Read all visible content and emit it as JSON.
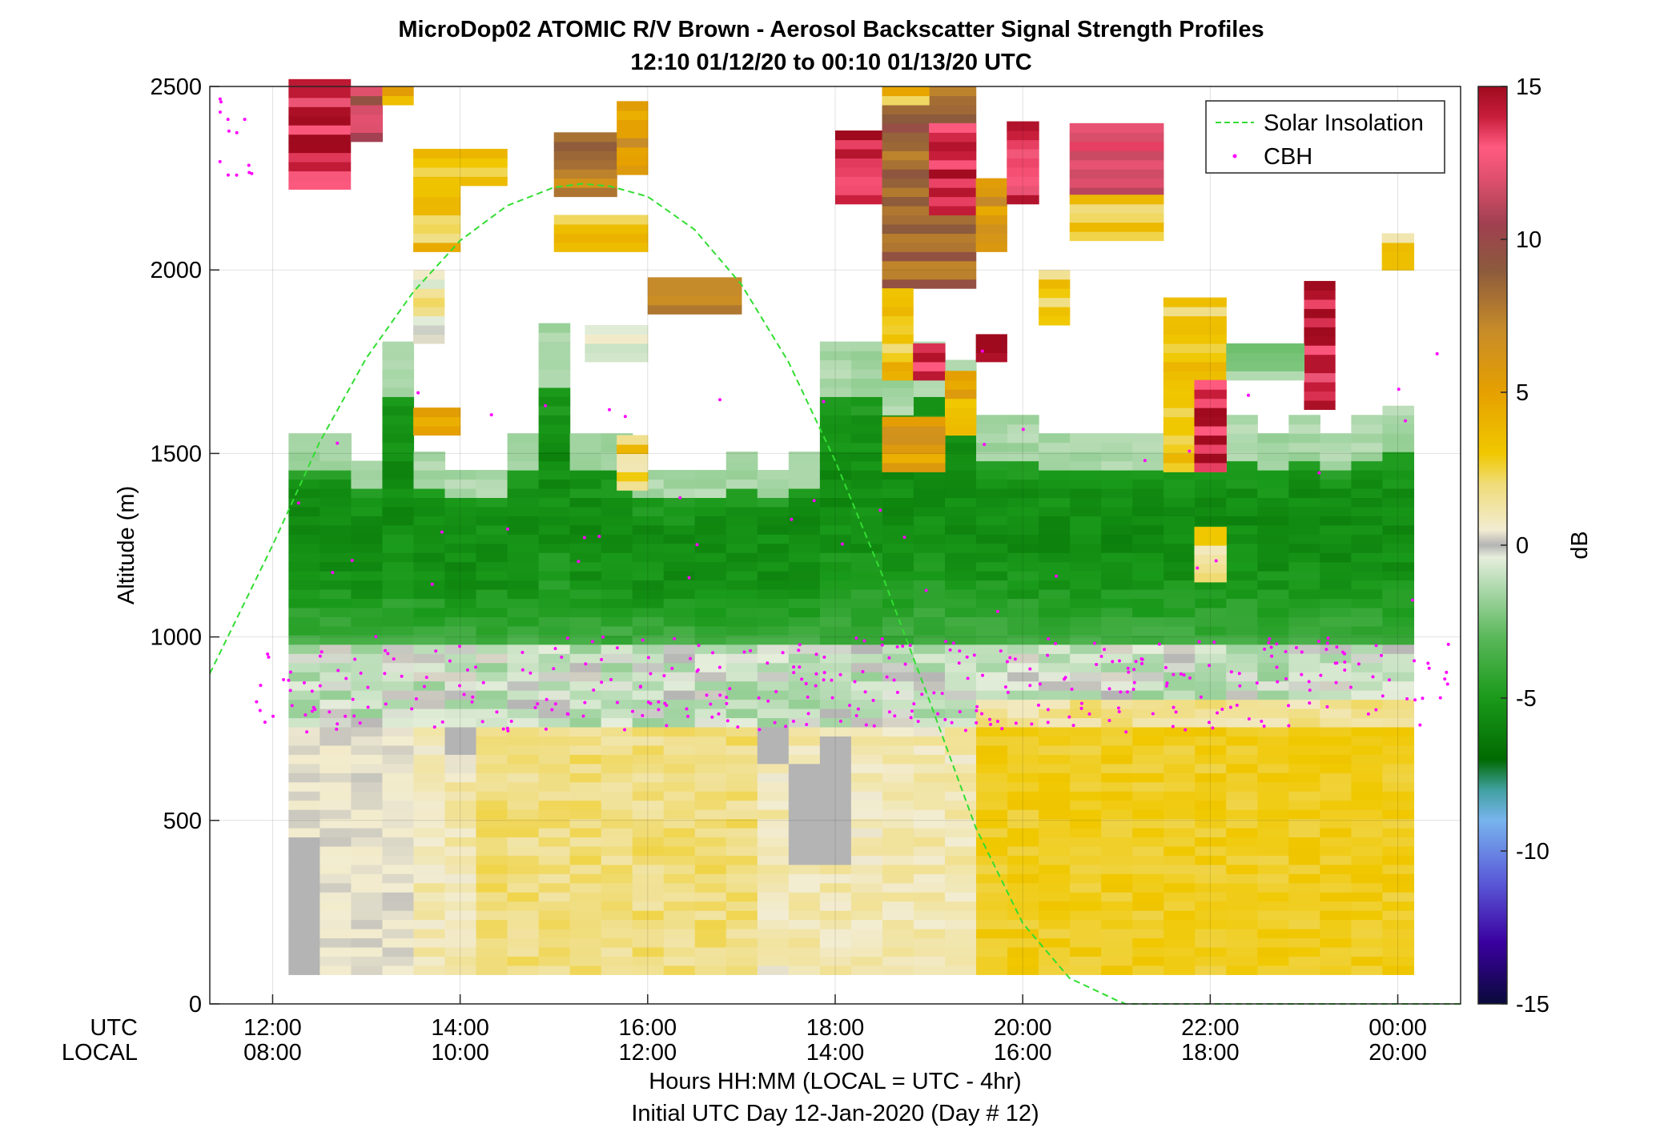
{
  "chart_data": {
    "type": "heatmap",
    "title": "MicroDop02 ATOMIC R/V Brown - Aerosol Backscatter Signal Strength Profiles",
    "subtitle": "12:10 01/12/20 to 00:10 01/13/20  UTC",
    "ylabel": "Altitude (m)",
    "xlabel": "Hours HH:MM  (LOCAL = UTC - 4hr)",
    "footer": "Initial UTC Day 12-Jan-2020 (Day # 12)",
    "xlim_hours_utc": [
      11.33,
      24.67
    ],
    "ylim": [
      0,
      2500
    ],
    "grid": true,
    "x_row_labels": [
      "UTC",
      "LOCAL"
    ],
    "x_ticks": [
      {
        "hour": 12,
        "utc": "12:00",
        "local": "08:00"
      },
      {
        "hour": 14,
        "utc": "14:00",
        "local": "10:00"
      },
      {
        "hour": 16,
        "utc": "16:00",
        "local": "12:00"
      },
      {
        "hour": 18,
        "utc": "18:00",
        "local": "14:00"
      },
      {
        "hour": 20,
        "utc": "20:00",
        "local": "16:00"
      },
      {
        "hour": 22,
        "utc": "22:00",
        "local": "18:00"
      },
      {
        "hour": 24,
        "utc": "00:00",
        "local": "20:00"
      }
    ],
    "y_ticks": [
      0,
      500,
      1000,
      1500,
      2000,
      2500
    ],
    "legend": {
      "placement": "top-right",
      "entries": [
        {
          "label": "Solar Insolation",
          "style": "dashed-line",
          "color": "#33dd33"
        },
        {
          "label": "CBH",
          "style": "dot",
          "color": "#ff00ff"
        }
      ]
    },
    "colorbar": {
      "label": "dB",
      "range": [
        -15,
        15
      ],
      "ticks": [
        15,
        10,
        5,
        0,
        -5,
        -10,
        -15
      ],
      "stops": [
        {
          "v": -15,
          "c": "#0a0a3a"
        },
        {
          "v": -13,
          "c": "#3a00a0"
        },
        {
          "v": -11,
          "c": "#5a5ad8"
        },
        {
          "v": -9,
          "c": "#78b4ee"
        },
        {
          "v": -8,
          "c": "#40a0a0"
        },
        {
          "v": -7,
          "c": "#006a00"
        },
        {
          "v": -5,
          "c": "#1a9a1a"
        },
        {
          "v": -3,
          "c": "#5ab85a"
        },
        {
          "v": -1.5,
          "c": "#a8d6a8"
        },
        {
          "v": -0.4,
          "c": "#e6eedc"
        },
        {
          "v": 0,
          "c": "#b4b4b4"
        },
        {
          "v": 0.5,
          "c": "#f2ecd2"
        },
        {
          "v": 2,
          "c": "#f0dc78"
        },
        {
          "v": 3,
          "c": "#f0c800"
        },
        {
          "v": 5,
          "c": "#e6a000"
        },
        {
          "v": 7,
          "c": "#c88c28"
        },
        {
          "v": 9,
          "c": "#8c5a3c"
        },
        {
          "v": 10.5,
          "c": "#a04050"
        },
        {
          "v": 12,
          "c": "#e0506e"
        },
        {
          "v": 13,
          "c": "#ff5a80"
        },
        {
          "v": 14,
          "c": "#c81e3c"
        },
        {
          "v": 15,
          "c": "#a00a1e"
        }
      ]
    },
    "solar_insolation": {
      "x_hours_utc": [
        11.33,
        12.0,
        12.5,
        13.0,
        13.5,
        14.0,
        14.5,
        15.0,
        15.3,
        15.6,
        16.0,
        16.5,
        17.0,
        17.5,
        18.0,
        18.5,
        19.0,
        19.5,
        20.0,
        20.5,
        21.0,
        21.1,
        24.67
      ],
      "altitude_m": [
        900,
        1250,
        1530,
        1760,
        1940,
        2080,
        2175,
        2225,
        2235,
        2228,
        2200,
        2110,
        1960,
        1750,
        1480,
        1170,
        830,
        480,
        220,
        70,
        10,
        0,
        0
      ]
    },
    "layers": [
      {
        "name": "surface-aerosol",
        "x_range": [
          12.17,
          24.17
        ],
        "y_range": [
          80,
          750
        ],
        "mean_db": 1.5
      },
      {
        "name": "subcloud-transition",
        "x_range": [
          12.17,
          24.17
        ],
        "y_range": [
          700,
          1000
        ],
        "mean_db": -0.5
      },
      {
        "name": "cloud-layer-green",
        "x_range": [
          12.17,
          24.17
        ],
        "y_range": [
          950,
          1560
        ],
        "mean_db": -4
      },
      {
        "name": "upper-cloud-tops",
        "x_range": [
          12.17,
          23.5
        ],
        "y_range": [
          1550,
          2500
        ],
        "mean_db": 6
      }
    ],
    "cbh": {
      "typical_altitude_m": 800,
      "range_m": [
        720,
        2470
      ]
    }
  }
}
